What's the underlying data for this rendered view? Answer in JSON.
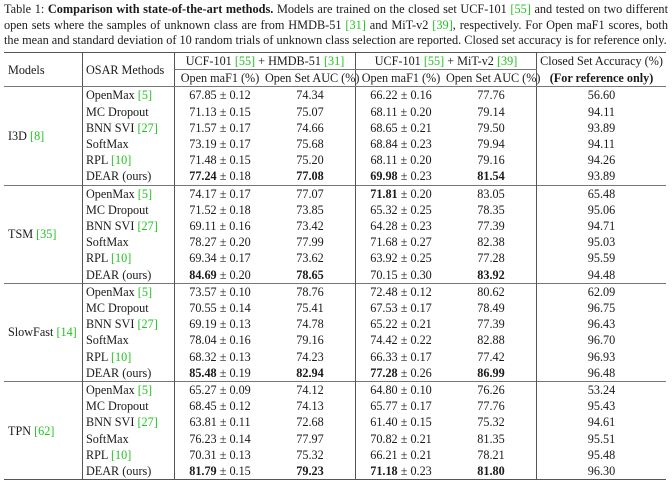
{
  "caption": {
    "label": "Table 1:",
    "title": "Comparison with state-of-the-art methods.",
    "text_1": " Models are trained on the closed set UCF-101 ",
    "cite_1": "[55]",
    "text_2": " and tested on two different open sets where the samples of unknown class are from HMDB-51 ",
    "cite_2": "[31]",
    "text_3": " and MiT-v2 ",
    "cite_3": "[39]",
    "text_4": ", respectively. For Open maF1 scores, both the mean and standard deviation of 10 random trials of unknown class selection are reported. Closed set accuracy is for reference only."
  },
  "header": {
    "models": "Models",
    "methods": "OSAR Methods",
    "group_a": {
      "pre": "UCF-101 ",
      "cite1": "[55]",
      "mid": " + HMDB-51 ",
      "cite2": "[31]"
    },
    "group_b": {
      "pre": "UCF-101 ",
      "cite1": "[55]",
      "mid": " + MiT-v2 ",
      "cite2": "[39]"
    },
    "f1": "Open maF1 (%)",
    "auc": "Open Set AUC (%)",
    "acc_line1": "Closed Set Accuracy (%)",
    "acc_line2": "(For reference only)"
  },
  "colors": {
    "citation": "#22c322",
    "rule": "#555555"
  },
  "groups": [
    {
      "model": "I3D ",
      "model_cite": "[8]",
      "rows": [
        {
          "method": "OpenMax ",
          "cite": "[5]",
          "f1a": "67.85",
          "f1a_sd": "0.12",
          "auca": "74.34",
          "f1b": "66.22",
          "f1b_sd": "0.16",
          "aucb": "77.76",
          "acc": "56.60"
        },
        {
          "method": "MC Dropout",
          "cite": "",
          "f1a": "71.13",
          "f1a_sd": "0.15",
          "auca": "75.07",
          "f1b": "68.11",
          "f1b_sd": "0.20",
          "aucb": "79.14",
          "acc": "94.11"
        },
        {
          "method": "BNN SVI ",
          "cite": "[27]",
          "f1a": "71.57",
          "f1a_sd": "0.17",
          "auca": "74.66",
          "f1b": "68.65",
          "f1b_sd": "0.21",
          "aucb": "79.50",
          "acc": "93.89"
        },
        {
          "method": "SoftMax",
          "cite": "",
          "f1a": "73.19",
          "f1a_sd": "0.17",
          "auca": "75.68",
          "f1b": "68.84",
          "f1b_sd": "0.23",
          "aucb": "79.94",
          "acc": "94.11"
        },
        {
          "method": "RPL ",
          "cite": "[10]",
          "f1a": "71.48",
          "f1a_sd": "0.15",
          "auca": "75.20",
          "f1b": "68.11",
          "f1b_sd": "0.20",
          "aucb": "79.16",
          "acc": "94.26"
        },
        {
          "method": "DEAR (ours)",
          "cite": "",
          "f1a": "77.24",
          "f1a_sd": "0.18",
          "auca": "77.08",
          "f1b": "69.98",
          "f1b_sd": "0.23",
          "aucb": "81.54",
          "acc": "93.89",
          "bold": [
            "f1a",
            "auca",
            "f1b",
            "aucb"
          ]
        }
      ]
    },
    {
      "model": "TSM ",
      "model_cite": "[35]",
      "rows": [
        {
          "method": "OpenMax ",
          "cite": "[5]",
          "f1a": "74.17",
          "f1a_sd": "0.17",
          "auca": "77.07",
          "f1b": "71.81",
          "f1b_sd": "0.20",
          "aucb": "83.05",
          "acc": "65.48",
          "bold": [
            "f1b"
          ]
        },
        {
          "method": "MC Dropout",
          "cite": "",
          "f1a": "71.52",
          "f1a_sd": "0.18",
          "auca": "73.85",
          "f1b": "65.32",
          "f1b_sd": "0.25",
          "aucb": "78.35",
          "acc": "95.06"
        },
        {
          "method": "BNN SVI ",
          "cite": "[27]",
          "f1a": "69.11",
          "f1a_sd": "0.16",
          "auca": "73.42",
          "f1b": "64.28",
          "f1b_sd": "0.23",
          "aucb": "77.39",
          "acc": "94.71"
        },
        {
          "method": "SoftMax",
          "cite": "",
          "f1a": "78.27",
          "f1a_sd": "0.20",
          "auca": "77.99",
          "f1b": "71.68",
          "f1b_sd": "0.27",
          "aucb": "82.38",
          "acc": "95.03"
        },
        {
          "method": "RPL ",
          "cite": "[10]",
          "f1a": "69.34",
          "f1a_sd": "0.17",
          "auca": "73.62",
          "f1b": "63.92",
          "f1b_sd": "0.25",
          "aucb": "77.28",
          "acc": "95.59"
        },
        {
          "method": "DEAR (ours)",
          "cite": "",
          "f1a": "84.69",
          "f1a_sd": "0.20",
          "auca": "78.65",
          "f1b": "70.15",
          "f1b_sd": "0.30",
          "aucb": "83.92",
          "acc": "94.48",
          "bold": [
            "f1a",
            "auca",
            "aucb"
          ]
        }
      ]
    },
    {
      "model": "SlowFast ",
      "model_cite": "[14]",
      "rows": [
        {
          "method": "OpenMax ",
          "cite": "[5]",
          "f1a": "73.57",
          "f1a_sd": "0.10",
          "auca": "78.76",
          "f1b": "72.48",
          "f1b_sd": "0.12",
          "aucb": "80.62",
          "acc": "62.09"
        },
        {
          "method": "MC Dropout",
          "cite": "",
          "f1a": "70.55",
          "f1a_sd": "0.14",
          "auca": "75.41",
          "f1b": "67.53",
          "f1b_sd": "0.17",
          "aucb": "78.49",
          "acc": "96.75"
        },
        {
          "method": "BNN SVI ",
          "cite": "[27]",
          "f1a": "69.19",
          "f1a_sd": "0.13",
          "auca": "74.78",
          "f1b": "65.22",
          "f1b_sd": "0.21",
          "aucb": "77.39",
          "acc": "96.43"
        },
        {
          "method": "SoftMax",
          "cite": "",
          "f1a": "78.04",
          "f1a_sd": "0.16",
          "auca": "79.16",
          "f1b": "74.42",
          "f1b_sd": "0.22",
          "aucb": "82.88",
          "acc": "96.70"
        },
        {
          "method": "RPL ",
          "cite": "[10]",
          "f1a": "68.32",
          "f1a_sd": "0.13",
          "auca": "74.23",
          "f1b": "66.33",
          "f1b_sd": "0.17",
          "aucb": "77.42",
          "acc": "96.93"
        },
        {
          "method": "DEAR (ours)",
          "cite": "",
          "f1a": "85.48",
          "f1a_sd": "0.19",
          "auca": "82.94",
          "f1b": "77.28",
          "f1b_sd": "0.26",
          "aucb": "86.99",
          "acc": "96.48",
          "bold": [
            "f1a",
            "auca",
            "f1b",
            "aucb"
          ]
        }
      ]
    },
    {
      "model": "TPN ",
      "model_cite": "[62]",
      "rows": [
        {
          "method": "OpenMax ",
          "cite": "[5]",
          "f1a": "65.27",
          "f1a_sd": "0.09",
          "auca": "74.12",
          "f1b": "64.80",
          "f1b_sd": "0.10",
          "aucb": "76.26",
          "acc": "53.24"
        },
        {
          "method": "MC Dropout",
          "cite": "",
          "f1a": "68.45",
          "f1a_sd": "0.12",
          "auca": "74.13",
          "f1b": "65.77",
          "f1b_sd": "0.17",
          "aucb": "77.76",
          "acc": "95.43"
        },
        {
          "method": "BNN SVI ",
          "cite": "[27]",
          "f1a": "63.81",
          "f1a_sd": "0.11",
          "auca": "72.68",
          "f1b": "61.40",
          "f1b_sd": "0.15",
          "aucb": "75.32",
          "acc": "94.61"
        },
        {
          "method": "SoftMax",
          "cite": "",
          "f1a": "76.23",
          "f1a_sd": "0.14",
          "auca": "77.97",
          "f1b": "70.82",
          "f1b_sd": "0.21",
          "aucb": "81.35",
          "acc": "95.51"
        },
        {
          "method": "RPL ",
          "cite": "[10]",
          "f1a": "70.31",
          "f1a_sd": "0.13",
          "auca": "75.32",
          "f1b": "66.21",
          "f1b_sd": "0.21",
          "aucb": "78.21",
          "acc": "95.48"
        },
        {
          "method": "DEAR (ours)",
          "cite": "",
          "f1a": "81.79",
          "f1a_sd": "0.15",
          "auca": "79.23",
          "f1b": "71.18",
          "f1b_sd": "0.23",
          "aucb": "81.80",
          "acc": "96.30",
          "bold": [
            "f1a",
            "auca",
            "f1b",
            "aucb"
          ]
        }
      ]
    }
  ],
  "pm_symbol": " ± "
}
